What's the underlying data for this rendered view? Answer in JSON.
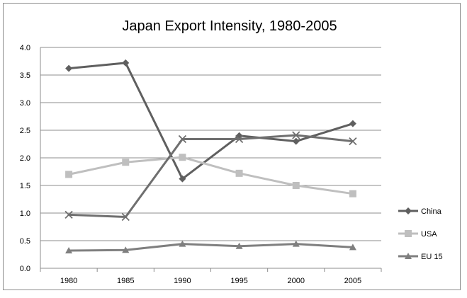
{
  "chart_data": {
    "type": "line",
    "title": "Japan Export Intensity, 1980-2005",
    "xlabel": "",
    "ylabel": "",
    "categories": [
      "1980",
      "1985",
      "1990",
      "1995",
      "2000",
      "2005"
    ],
    "ylim": [
      0,
      4
    ],
    "yticks": [
      "0.0",
      "0.5",
      "1.0",
      "1.5",
      "2.0",
      "2.5",
      "3.0",
      "3.5",
      "4.0"
    ],
    "grid": true,
    "legend_position": "right",
    "series": [
      {
        "name": "China",
        "values": [
          3.62,
          3.72,
          1.62,
          2.4,
          2.3,
          2.62
        ],
        "color": "#5f5f5f",
        "marker": "diamond"
      },
      {
        "name": "USA",
        "values": [
          1.7,
          1.92,
          2.01,
          1.72,
          1.5,
          1.35
        ],
        "color": "#bfbfbf",
        "marker": "square"
      },
      {
        "name": "EU 15",
        "values": [
          0.32,
          0.33,
          0.44,
          0.4,
          0.44,
          0.38
        ],
        "color": "#7f7f7f",
        "marker": "triangle"
      },
      {
        "name": "",
        "values": [
          0.97,
          0.93,
          2.34,
          2.34,
          2.41,
          2.3
        ],
        "color": "#6f6f6f",
        "marker": "x"
      }
    ]
  }
}
